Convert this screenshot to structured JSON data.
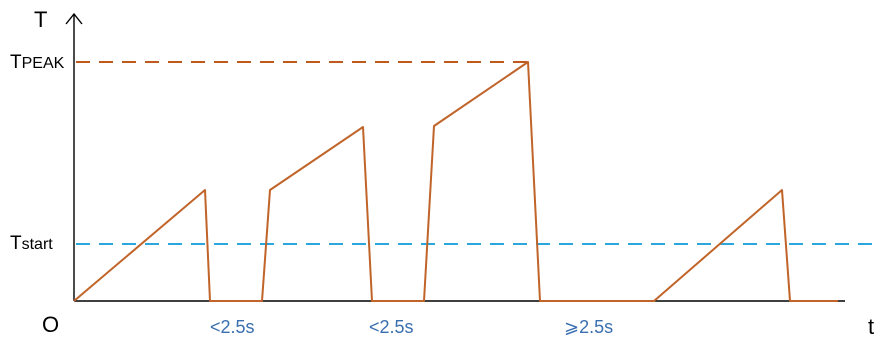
{
  "axes": {
    "y_label": "T",
    "x_label": "t",
    "origin_label": "O"
  },
  "levels": {
    "peak": {
      "prefix": "T",
      "sub": "PEAK",
      "color": "#c05a1c"
    },
    "start": {
      "prefix": "T",
      "sub": "start",
      "color": "#2ba6de"
    }
  },
  "intervals": {
    "color": "#3a6fb0",
    "labels": [
      "<2.5s",
      "<2.5s",
      "⩾2.5s"
    ]
  },
  "curve_color": "#c0642a",
  "axis_color": "#000000"
}
